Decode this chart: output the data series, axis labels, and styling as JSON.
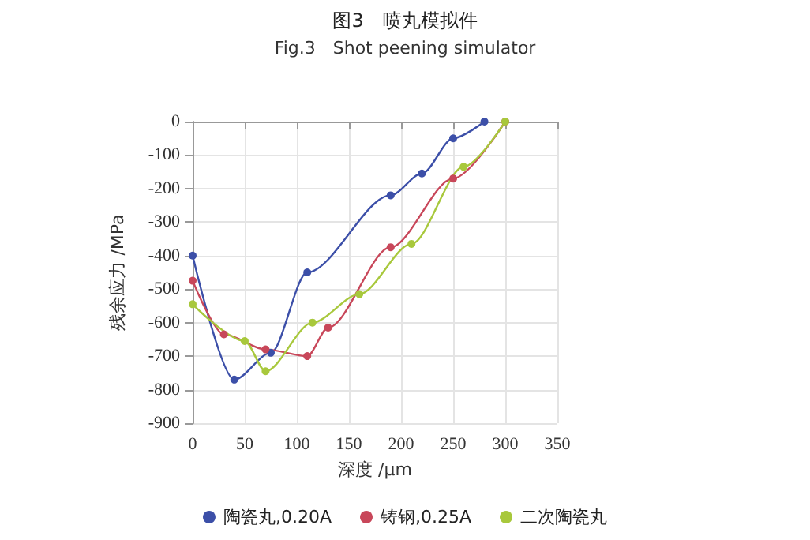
{
  "chart_data": {
    "type": "line",
    "title": "图3　喷丸模拟件",
    "subtitle": "Fig.3　Shot peening simulator",
    "xlabel": "深度 /μm",
    "ylabel": "残余应力 /MPa",
    "xlim": [
      0,
      350
    ],
    "xticks": [
      0,
      50,
      100,
      150,
      200,
      250,
      300,
      350
    ],
    "ylim": [
      -900,
      0
    ],
    "yticks": [
      -900,
      -800,
      -700,
      -600,
      -500,
      -400,
      -300,
      -200,
      -100,
      0
    ],
    "grid": true,
    "legend": "bottom",
    "marker": "circle",
    "line_style": "solid",
    "series": [
      {
        "name": "陶瓷丸,0.20A",
        "color": "#3c4fa8",
        "x": [
          0,
          40,
          75,
          110,
          190,
          220,
          250,
          280
        ],
        "values": [
          -400,
          -770,
          -690,
          -450,
          -220,
          -155,
          -50,
          0
        ]
      },
      {
        "name": "铸钢,0.25A",
        "color": "#c8475a",
        "x": [
          0,
          30,
          70,
          110,
          130,
          190,
          250,
          300
        ],
        "values": [
          -475,
          -635,
          -680,
          -700,
          -615,
          -375,
          -170,
          0
        ]
      },
      {
        "name": "二次陶瓷丸",
        "color": "#a8c83c",
        "x": [
          0,
          50,
          70,
          115,
          160,
          210,
          260,
          300
        ],
        "values": [
          -545,
          -655,
          -745,
          -600,
          -515,
          -365,
          -135,
          0
        ]
      }
    ]
  }
}
